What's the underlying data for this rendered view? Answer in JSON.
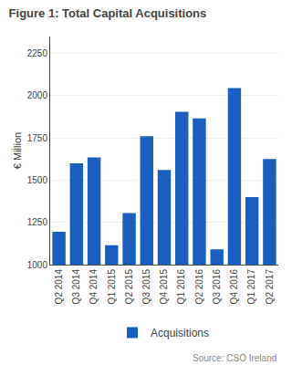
{
  "chart_data": {
    "type": "bar",
    "title": "Figure 1: Total Capital Acquisitions",
    "ylabel": "€ Million",
    "categories": [
      "Q2 2014",
      "Q3 2014",
      "Q4 2014",
      "Q1 2015",
      "Q2 2015",
      "Q3 2015",
      "Q4 2015",
      "Q1 2016",
      "Q2 2016",
      "Q3 2016",
      "Q4 2016",
      "Q1 2017",
      "Q2 2017"
    ],
    "series": [
      {
        "name": "Acquisitions",
        "color": "#1A5FBF",
        "values": [
          1195,
          1600,
          1635,
          1115,
          1305,
          1760,
          1560,
          1905,
          1865,
          1090,
          2045,
          1400,
          1625
        ]
      }
    ],
    "ylim": [
      1000,
      2350
    ],
    "yticks": [
      1000,
      1250,
      1500,
      1750,
      2000,
      2250
    ],
    "grid": true,
    "legend": "bottom",
    "annotations": [
      "Source: CSO Ireland"
    ]
  }
}
